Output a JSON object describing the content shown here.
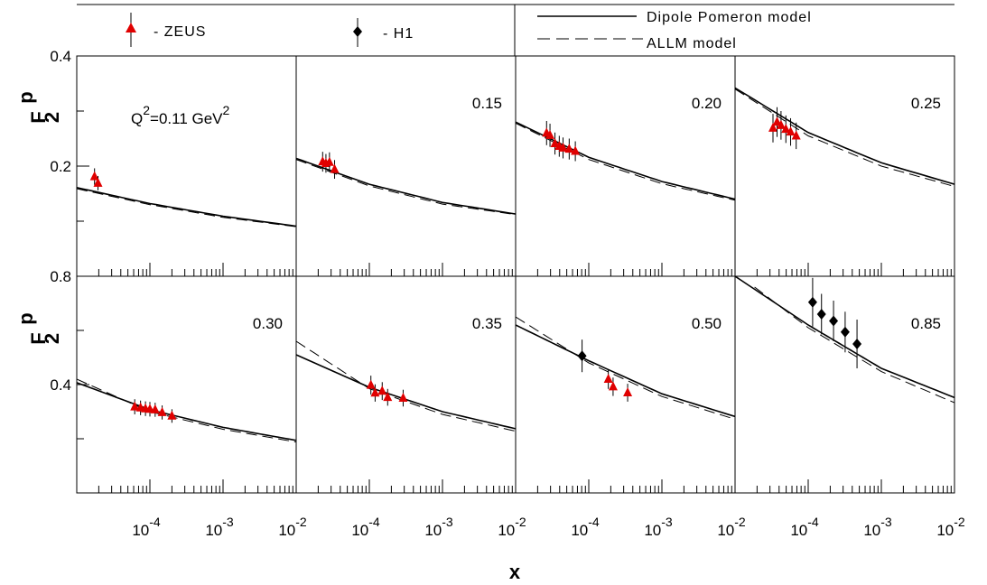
{
  "chart_data": {
    "type": "scatter",
    "xlabel": "x",
    "ylabel": "F",
    "ylabel_sup": "p",
    "ylabel_sub": "2",
    "x_scale": "log",
    "xlim": [
      1e-05,
      0.01
    ],
    "x_tick_labels": [
      {
        "value": 0.0001,
        "base": "10",
        "exp": "-4"
      },
      {
        "value": 0.001,
        "base": "10",
        "exp": "-3"
      },
      {
        "value": 0.01,
        "base": "10",
        "exp": "-2"
      }
    ],
    "legend": [
      {
        "marker": "triangle",
        "color": "#e00000",
        "label": "- ZEUS"
      },
      {
        "marker": "diamond",
        "color": "#000000",
        "label": "- H1"
      },
      {
        "line": "solid",
        "label": "Dipole Pomeron model"
      },
      {
        "line": "dashed",
        "label": "ALLM model"
      }
    ],
    "rows": [
      {
        "ylim": [
          0.0,
          0.4
        ],
        "y_tick_labels": [
          {
            "value": 0.2,
            "label": "0.2"
          },
          {
            "value": 0.4,
            "label": "0.4"
          }
        ],
        "y_minor_ticks": [
          0.1,
          0.3
        ]
      },
      {
        "ylim": [
          0.0,
          0.8
        ],
        "y_tick_labels": [
          {
            "value": 0.4,
            "label": "0.4"
          },
          {
            "value": 0.8,
            "label": "0.8"
          }
        ],
        "y_minor_ticks": [
          0.2,
          0.6
        ]
      }
    ],
    "panels": [
      {
        "row": 0,
        "col": 0,
        "q2_prefix": "Q",
        "q2_exp": "2",
        "q2_value": "=0.11 GeV",
        "q2_unit_exp": "2",
        "dipole": [
          [
            1e-05,
            0.161
          ],
          [
            0.0001,
            0.132
          ],
          [
            0.001,
            0.109
          ],
          [
            0.01,
            0.091
          ]
        ],
        "allm": [
          [
            1e-05,
            0.159
          ],
          [
            0.0001,
            0.13
          ],
          [
            0.001,
            0.107
          ],
          [
            0.01,
            0.09
          ]
        ],
        "zeus": [
          {
            "x": 1.75e-05,
            "y": 0.181,
            "err": 0.015
          },
          {
            "x": 1.95e-05,
            "y": 0.169,
            "err": 0.013
          }
        ],
        "h1": []
      },
      {
        "row": 0,
        "col": 1,
        "label": "0.15",
        "dipole": [
          [
            1e-05,
            0.214
          ],
          [
            0.0001,
            0.167
          ],
          [
            0.001,
            0.134
          ],
          [
            0.01,
            0.113
          ]
        ],
        "allm": [
          [
            1e-05,
            0.212
          ],
          [
            0.0001,
            0.164
          ],
          [
            0.001,
            0.131
          ],
          [
            0.01,
            0.112
          ]
        ],
        "zeus": [
          {
            "x": 2.3e-05,
            "y": 0.208,
            "err": 0.018
          },
          {
            "x": 2.55e-05,
            "y": 0.205,
            "err": 0.017
          },
          {
            "x": 2.85e-05,
            "y": 0.207,
            "err": 0.018
          },
          {
            "x": 3.35e-05,
            "y": 0.194,
            "err": 0.017
          }
        ],
        "h1": []
      },
      {
        "row": 0,
        "col": 2,
        "label": "0.20",
        "dipole": [
          [
            1e-05,
            0.28
          ],
          [
            0.0001,
            0.216
          ],
          [
            0.001,
            0.172
          ],
          [
            0.01,
            0.14
          ]
        ],
        "allm": [
          [
            1e-05,
            0.278
          ],
          [
            0.0001,
            0.212
          ],
          [
            0.001,
            0.168
          ],
          [
            0.01,
            0.138
          ]
        ],
        "zeus": [
          {
            "x": 2.65e-05,
            "y": 0.26,
            "err": 0.022
          },
          {
            "x": 2.95e-05,
            "y": 0.256,
            "err": 0.021
          },
          {
            "x": 3.45e-05,
            "y": 0.241,
            "err": 0.02
          },
          {
            "x": 3.95e-05,
            "y": 0.236,
            "err": 0.019
          },
          {
            "x": 4.45e-05,
            "y": 0.233,
            "err": 0.019
          },
          {
            "x": 5.4e-05,
            "y": 0.231,
            "err": 0.019
          },
          {
            "x": 6.55e-05,
            "y": 0.227,
            "err": 0.018
          }
        ],
        "h1": []
      },
      {
        "row": 0,
        "col": 3,
        "label": "0.25",
        "dipole": [
          [
            1e-05,
            0.342
          ],
          [
            0.0001,
            0.261
          ],
          [
            0.001,
            0.206
          ],
          [
            0.01,
            0.167
          ]
        ],
        "allm": [
          [
            1e-05,
            0.34
          ],
          [
            0.0001,
            0.255
          ],
          [
            0.001,
            0.2
          ],
          [
            0.01,
            0.163
          ]
        ],
        "zeus": [
          {
            "x": 3.3e-05,
            "y": 0.269,
            "err": 0.026
          },
          {
            "x": 3.75e-05,
            "y": 0.28,
            "err": 0.027
          },
          {
            "x": 4.25e-05,
            "y": 0.274,
            "err": 0.026
          },
          {
            "x": 4.95e-05,
            "y": 0.267,
            "err": 0.025
          },
          {
            "x": 5.75e-05,
            "y": 0.262,
            "err": 0.025
          },
          {
            "x": 6.85e-05,
            "y": 0.255,
            "err": 0.024
          }
        ],
        "h1": []
      },
      {
        "row": 1,
        "col": 0,
        "label": "0.30",
        "dipole": [
          [
            1e-05,
            0.407
          ],
          [
            0.0001,
            0.307
          ],
          [
            0.001,
            0.242
          ],
          [
            0.01,
            0.194
          ]
        ],
        "allm": [
          [
            1e-05,
            0.42
          ],
          [
            0.0001,
            0.3
          ],
          [
            0.001,
            0.235
          ],
          [
            0.01,
            0.188
          ]
        ],
        "zeus": [
          {
            "x": 6.2e-05,
            "y": 0.318,
            "err": 0.028
          },
          {
            "x": 7.45e-05,
            "y": 0.314,
            "err": 0.027
          },
          {
            "x": 8.7e-05,
            "y": 0.311,
            "err": 0.027
          },
          {
            "x": 0.0001,
            "y": 0.309,
            "err": 0.027
          },
          {
            "x": 0.000118,
            "y": 0.307,
            "err": 0.026
          },
          {
            "x": 0.000147,
            "y": 0.297,
            "err": 0.026
          },
          {
            "x": 0.0002,
            "y": 0.284,
            "err": 0.025
          }
        ],
        "h1": []
      },
      {
        "row": 1,
        "col": 1,
        "label": "0.35",
        "dipole": [
          [
            1e-05,
            0.51
          ],
          [
            0.0001,
            0.39
          ],
          [
            0.001,
            0.3
          ],
          [
            0.01,
            0.237
          ]
        ],
        "allm": [
          [
            1e-05,
            0.56
          ],
          [
            0.0001,
            0.385
          ],
          [
            0.001,
            0.29
          ],
          [
            0.01,
            0.228
          ]
        ],
        "zeus": [
          {
            "x": 0.000105,
            "y": 0.398,
            "err": 0.035
          },
          {
            "x": 0.00012,
            "y": 0.369,
            "err": 0.032
          },
          {
            "x": 0.00015,
            "y": 0.376,
            "err": 0.033
          },
          {
            "x": 0.000178,
            "y": 0.353,
            "err": 0.031
          },
          {
            "x": 0.00029,
            "y": 0.35,
            "err": 0.031
          }
        ],
        "h1": []
      },
      {
        "row": 1,
        "col": 2,
        "label": "0.50",
        "dipole": [
          [
            1e-05,
            0.62
          ],
          [
            0.0001,
            0.488
          ],
          [
            0.001,
            0.366
          ],
          [
            0.01,
            0.282
          ]
        ],
        "allm": [
          [
            1e-05,
            0.65
          ],
          [
            0.0001,
            0.48
          ],
          [
            0.001,
            0.356
          ],
          [
            0.01,
            0.272
          ]
        ],
        "zeus": [
          {
            "x": 0.000185,
            "y": 0.42,
            "err": 0.036
          },
          {
            "x": 0.000215,
            "y": 0.392,
            "err": 0.034
          },
          {
            "x": 0.00034,
            "y": 0.37,
            "err": 0.033
          }
        ],
        "h1": [
          {
            "x": 8.1e-05,
            "y": 0.506,
            "err": 0.06
          }
        ]
      },
      {
        "row": 1,
        "col": 3,
        "label": "0.85",
        "dipole": [
          [
            1e-05,
            0.8
          ],
          [
            0.0001,
            0.62
          ],
          [
            0.001,
            0.46
          ],
          [
            0.01,
            0.352
          ]
        ],
        "allm": [
          [
            1.85e-05,
            0.76
          ],
          [
            0.0001,
            0.61
          ],
          [
            0.001,
            0.448
          ],
          [
            0.01,
            0.333
          ]
        ],
        "zeus": [],
        "h1": [
          {
            "x": 0.000115,
            "y": 0.704,
            "err": 0.09
          },
          {
            "x": 0.000152,
            "y": 0.66,
            "err": 0.075
          },
          {
            "x": 0.000222,
            "y": 0.635,
            "err": 0.075
          },
          {
            "x": 0.00032,
            "y": 0.594,
            "err": 0.075
          },
          {
            "x": 0.000465,
            "y": 0.55,
            "err": 0.09
          }
        ]
      }
    ]
  }
}
